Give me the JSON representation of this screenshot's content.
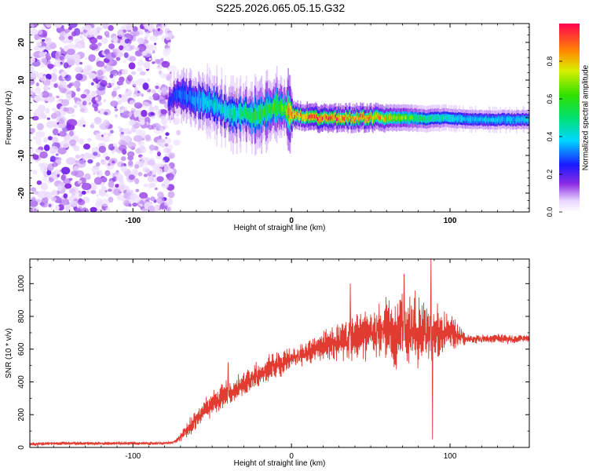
{
  "title": "S225.2026.065.05.15.G32",
  "colors": {
    "snr_line": "#e03c32",
    "axis": "#000000",
    "background": "#ffffff"
  },
  "chart_data": [
    {
      "type": "heatmap",
      "name": "spectrogram",
      "xlabel": "Height of straight line (km)",
      "ylabel": "Frequency (Hz)",
      "xlim": [
        -165,
        150
      ],
      "ylim": [
        -25,
        25
      ],
      "xticks": [
        -100,
        0,
        100
      ],
      "yticks": [
        -20,
        -10,
        0,
        10,
        20
      ],
      "colorbar": {
        "label": "Normalized spectral amplitude",
        "range": [
          0,
          1
        ],
        "ticks": [
          "0.0",
          "0.2",
          "0.4",
          "0.6",
          "0.8"
        ]
      },
      "noise_region_x": [
        -165,
        -75
      ],
      "ridge": [
        {
          "x": -78,
          "f": 4.0,
          "a": 0.2
        },
        {
          "x": -72,
          "f": 6.5,
          "a": 0.3
        },
        {
          "x": -66,
          "f": 5.5,
          "a": 0.3
        },
        {
          "x": -60,
          "f": 4.5,
          "a": 0.35
        },
        {
          "x": -55,
          "f": 4.0,
          "a": 0.4
        },
        {
          "x": -50,
          "f": 3.5,
          "a": 0.4
        },
        {
          "x": -45,
          "f": 2.5,
          "a": 0.4
        },
        {
          "x": -40,
          "f": 1.5,
          "a": 0.45
        },
        {
          "x": -35,
          "f": 1.0,
          "a": 0.45
        },
        {
          "x": -30,
          "f": 1.5,
          "a": 0.5
        },
        {
          "x": -25,
          "f": 0.5,
          "a": 0.55
        },
        {
          "x": -20,
          "f": 1.0,
          "a": 0.55
        },
        {
          "x": -15,
          "f": 2.0,
          "a": 0.55
        },
        {
          "x": -10,
          "f": 3.0,
          "a": 0.6
        },
        {
          "x": -5,
          "f": 2.5,
          "a": 0.6
        },
        {
          "x": 0,
          "f": 1.0,
          "a": 0.9
        },
        {
          "x": 5,
          "f": 0.5,
          "a": 0.8
        },
        {
          "x": 15,
          "f": 0.0,
          "a": 0.95
        },
        {
          "x": 25,
          "f": 0.0,
          "a": 0.9
        },
        {
          "x": 35,
          "f": 0.0,
          "a": 0.85
        },
        {
          "x": 45,
          "f": 0.0,
          "a": 0.85
        },
        {
          "x": 55,
          "f": 0.0,
          "a": 0.8
        },
        {
          "x": 65,
          "f": 0.0,
          "a": 0.7
        },
        {
          "x": 75,
          "f": 0.0,
          "a": 0.6
        },
        {
          "x": 85,
          "f": -0.3,
          "a": 0.5
        },
        {
          "x": 95,
          "f": 0.0,
          "a": 0.45
        },
        {
          "x": 105,
          "f": -0.3,
          "a": 0.4
        },
        {
          "x": 115,
          "f": -0.5,
          "a": 0.38
        },
        {
          "x": 125,
          "f": -0.5,
          "a": 0.38
        },
        {
          "x": 135,
          "f": -0.5,
          "a": 0.38
        },
        {
          "x": 150,
          "f": -0.5,
          "a": 0.38
        }
      ]
    },
    {
      "type": "line",
      "name": "snr",
      "xlabel": "Height of straight line (km)",
      "ylabel": "SNR (10 * v/v)",
      "xlim": [
        -165,
        150
      ],
      "ylim": [
        0,
        1150
      ],
      "xticks": [
        -100,
        0,
        100
      ],
      "yticks": [
        0,
        200,
        400,
        600,
        800,
        1000
      ],
      "series": [
        {
          "name": "SNR",
          "x": [
            -165,
            -150,
            -130,
            -110,
            -90,
            -80,
            -75,
            -70,
            -65,
            -60,
            -55,
            -50,
            -45,
            -40,
            -35,
            -30,
            -25,
            -20,
            -15,
            -10,
            -5,
            0,
            5,
            10,
            15,
            20,
            25,
            30,
            35,
            40,
            45,
            50,
            55,
            60,
            65,
            70,
            75,
            80,
            85,
            90,
            95,
            100,
            105,
            110,
            120,
            130,
            140,
            150
          ],
          "y": [
            20,
            25,
            25,
            25,
            25,
            25,
            30,
            60,
            120,
            170,
            230,
            270,
            300,
            330,
            360,
            390,
            420,
            450,
            480,
            500,
            520,
            550,
            560,
            580,
            600,
            620,
            640,
            650,
            660,
            680,
            700,
            710,
            700,
            720,
            700,
            720,
            710,
            720,
            700,
            650,
            700,
            720,
            680,
            660,
            660,
            665,
            660,
            665
          ],
          "spread": [
            15,
            15,
            15,
            15,
            15,
            10,
            10,
            40,
            80,
            90,
            100,
            110,
            110,
            120,
            120,
            110,
            110,
            120,
            120,
            120,
            110,
            100,
            110,
            110,
            120,
            140,
            160,
            180,
            200,
            200,
            220,
            240,
            260,
            280,
            300,
            300,
            320,
            320,
            300,
            280,
            200,
            150,
            120,
            40,
            40,
            40,
            40,
            40
          ],
          "spikes": [
            {
              "x": -40,
              "y": 520
            },
            {
              "x": -14,
              "y": 570
            },
            {
              "x": 37,
              "y": 1000
            },
            {
              "x": 71,
              "y": 1060
            },
            {
              "x": 88,
              "y": 1150
            },
            {
              "x": 89,
              "y": 50
            },
            {
              "x": 92,
              "y": 880
            }
          ]
        }
      ]
    }
  ]
}
